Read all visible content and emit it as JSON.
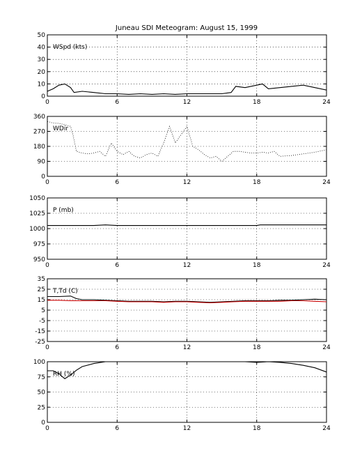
{
  "figure": {
    "title": "Juneau SDI Meteogram:     August 15, 1999"
  },
  "chart_data": [
    {
      "type": "line",
      "label": "WSpd (kts)",
      "xlim": [
        0,
        24
      ],
      "ylim": [
        0,
        50
      ],
      "xticks": [
        0,
        6,
        12,
        18,
        24
      ],
      "yticks": [
        0,
        10,
        20,
        30,
        40,
        50
      ],
      "grid": true,
      "series": [
        {
          "color": "#000000",
          "style": "line",
          "x": [
            0,
            0.5,
            1,
            1.5,
            2,
            2.3,
            3,
            4,
            5,
            6,
            7,
            8,
            9,
            10,
            11,
            12,
            13,
            14,
            15,
            15.8,
            16.2,
            17,
            18,
            18.5,
            19,
            20,
            21,
            22,
            23,
            24
          ],
          "y": [
            4,
            6,
            9,
            10,
            7,
            3,
            4,
            3,
            2,
            2,
            1.5,
            2,
            1.5,
            2,
            1.5,
            2,
            2,
            2,
            2,
            3,
            8,
            7,
            9,
            10,
            6,
            7,
            8,
            9,
            7,
            5
          ]
        }
      ]
    },
    {
      "type": "scatter",
      "label": "WDir",
      "xlim": [
        0,
        24
      ],
      "ylim": [
        0,
        360
      ],
      "xticks": [
        0,
        6,
        12,
        18,
        24
      ],
      "yticks": [
        0,
        90,
        180,
        270,
        360
      ],
      "grid": true,
      "series": [
        {
          "color": "#000000",
          "style": "line",
          "x": [
            0,
            0.5,
            1,
            1.5,
            2,
            2.2,
            2.5,
            3,
            3.5,
            4,
            4.5,
            5,
            5.5,
            6,
            6.5,
            7,
            7.5,
            8,
            8.5,
            9,
            9.5,
            10,
            10.5,
            11,
            11.5,
            12,
            12.5,
            13,
            13.5,
            14,
            14.5,
            15,
            15.5,
            16,
            16.5,
            17,
            17.5,
            18,
            18.5,
            19,
            19.5,
            20,
            21,
            22,
            23,
            24
          ],
          "y": [
            330,
            320,
            318,
            310,
            300,
            250,
            150,
            140,
            135,
            140,
            150,
            120,
            200,
            150,
            130,
            150,
            120,
            110,
            130,
            140,
            120,
            200,
            300,
            200,
            250,
            300,
            180,
            160,
            130,
            110,
            120,
            90,
            120,
            150,
            150,
            145,
            140,
            140,
            145,
            140,
            150,
            120,
            125,
            135,
            145,
            160
          ]
        }
      ]
    },
    {
      "type": "line",
      "label": "P (mb)",
      "xlim": [
        0,
        24
      ],
      "ylim": [
        950,
        1050
      ],
      "xticks": [
        0,
        6,
        12,
        18,
        24
      ],
      "yticks": [
        950,
        975,
        1000,
        1025,
        1050
      ],
      "grid": true,
      "series": [
        {
          "color": "#000000",
          "style": "line",
          "x": [
            0,
            2,
            4,
            5,
            6,
            8,
            10,
            12,
            14,
            16,
            18,
            18.3,
            20,
            22,
            24
          ],
          "y": [
            1005,
            1005,
            1005,
            1006,
            1005,
            1005,
            1005,
            1005,
            1005,
            1005,
            1005,
            1006,
            1006,
            1006,
            1006
          ]
        }
      ]
    },
    {
      "type": "line",
      "label": "T,Td (C)",
      "xlim": [
        0,
        24
      ],
      "ylim": [
        -25,
        35
      ],
      "xticks": [
        0,
        6,
        12,
        18,
        24
      ],
      "yticks": [
        -25,
        -15,
        -5,
        5,
        15,
        25,
        35
      ],
      "grid": true,
      "series": [
        {
          "color": "#000000",
          "style": "line",
          "x": [
            0,
            1,
            2,
            2.5,
            3,
            4,
            5,
            6,
            7,
            8,
            9,
            10,
            11,
            12,
            13,
            14,
            15,
            16,
            17,
            18,
            19,
            20,
            21,
            22,
            23,
            24
          ],
          "y": [
            18,
            18,
            18.5,
            16,
            15,
            15,
            14.5,
            14,
            13.5,
            13.5,
            13.5,
            13,
            13.5,
            13.5,
            13,
            12.5,
            13,
            13.5,
            14,
            14,
            14,
            14.5,
            14.5,
            15,
            15.5,
            15
          ]
        },
        {
          "color": "#cc0000",
          "style": "line",
          "x": [
            0,
            1,
            2,
            3,
            4,
            5,
            6,
            7,
            8,
            9,
            10,
            11,
            12,
            13,
            14,
            15,
            16,
            17,
            18,
            19,
            20,
            21,
            22,
            23,
            24
          ],
          "y": [
            14.5,
            14.5,
            14,
            14,
            14,
            14,
            13.5,
            13,
            13,
            13,
            12.5,
            13,
            13,
            12.5,
            12,
            12.5,
            13,
            13.5,
            13.5,
            13.5,
            13.5,
            14,
            14,
            13.5,
            13
          ]
        }
      ]
    },
    {
      "type": "line",
      "label": "RH (%)",
      "xlim": [
        0,
        24
      ],
      "ylim": [
        0,
        100
      ],
      "xticks": [
        0,
        6,
        12,
        18,
        24
      ],
      "yticks": [
        0,
        25,
        50,
        75,
        100
      ],
      "grid": true,
      "series": [
        {
          "color": "#000000",
          "style": "line",
          "x": [
            0,
            0.5,
            1,
            1.5,
            2,
            2.5,
            3,
            4,
            5,
            5.5,
            6,
            16,
            17,
            18,
            19,
            20,
            21,
            22,
            23,
            24
          ],
          "y": [
            85,
            85,
            80,
            72,
            78,
            86,
            92,
            97,
            100,
            100,
            100,
            100,
            100,
            99,
            100,
            99,
            97,
            94,
            90,
            83
          ]
        }
      ]
    }
  ]
}
